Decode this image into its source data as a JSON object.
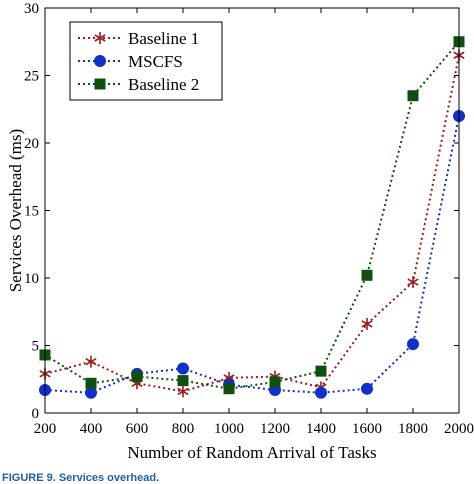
{
  "chart_data": {
    "type": "line",
    "xlabel": "Number of Random Arrival of  Tasks",
    "ylabel": "Services Overhead (ms)",
    "x": [
      200,
      400,
      600,
      800,
      1000,
      1200,
      1400,
      1600,
      1800,
      2000
    ],
    "xticks": [
      "200",
      "400",
      "600",
      "800",
      "1000",
      "1200",
      "1400",
      "1600",
      "1800",
      "2000"
    ],
    "yticks": [
      "0",
      "5",
      "10",
      "15",
      "20",
      "25",
      "30"
    ],
    "xlim": [
      200,
      2000
    ],
    "ylim": [
      0,
      30
    ],
    "grid": false,
    "legend_position": "top-left",
    "series": [
      {
        "name": "Baseline 1",
        "color": "#a01818",
        "marker": "asterisk",
        "values": [
          2.9,
          3.8,
          2.2,
          1.6,
          2.6,
          2.7,
          1.9,
          6.6,
          9.7,
          26.5
        ]
      },
      {
        "name": "MSCFS",
        "color": "#1030c8",
        "marker": "circle",
        "values": [
          1.7,
          1.5,
          2.9,
          3.3,
          2.1,
          1.7,
          1.5,
          1.8,
          5.1,
          22.0
        ]
      },
      {
        "name": "Baseline 2",
        "color": "#0f4f0f",
        "marker": "square",
        "values": [
          4.3,
          2.2,
          2.7,
          2.4,
          1.8,
          2.3,
          3.1,
          10.2,
          23.5,
          27.5
        ]
      }
    ]
  },
  "caption": "FIGURE 9.  Services overhead."
}
